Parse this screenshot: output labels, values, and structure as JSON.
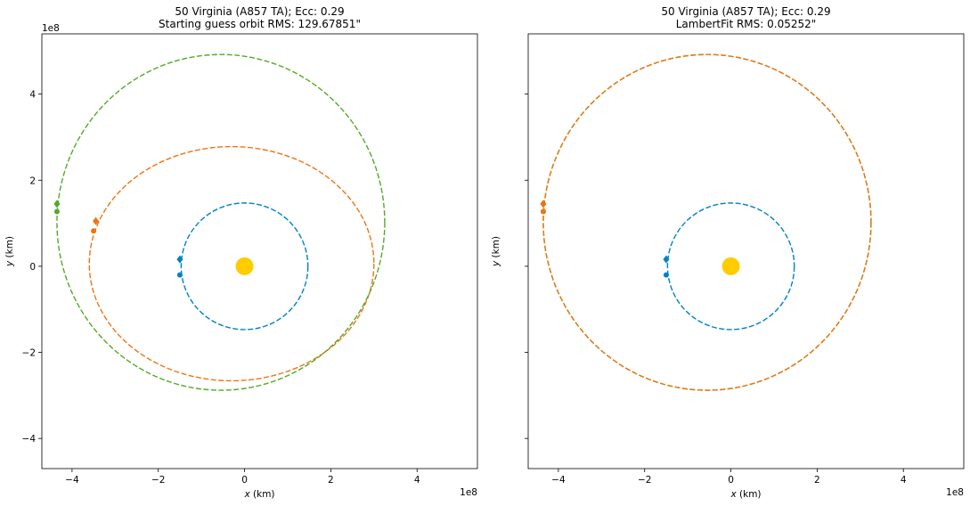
{
  "chart_data": [
    {
      "type": "line",
      "title": "50 Virginia (A857 TA); Ecc: 0.29",
      "subtitle": "Starting guess orbit RMS: 129.67851\"",
      "xlabel": "x (km)",
      "ylabel": "y (km)",
      "offset_x": "1e8",
      "offset_y": "1e8",
      "xlim": [
        -4.7,
        5.4
      ],
      "ylim": [
        -4.7,
        5.4
      ],
      "xticks": [
        -4,
        -2,
        0,
        2,
        4
      ],
      "yticks": [
        -4,
        -2,
        0,
        2,
        4
      ],
      "xtick_labels": [
        "−4",
        "−2",
        "0",
        "2",
        "4"
      ],
      "ytick_labels": [
        "−4",
        "−2",
        "0",
        "2",
        "4"
      ],
      "show_ytick_labels": true,
      "grid": false,
      "sun": {
        "x": 0,
        "y": 0,
        "color": "#ffcc00"
      },
      "series": [
        {
          "color": "#0081c9",
          "style": "dashed",
          "center": [
            0,
            0
          ],
          "a": 1.47,
          "b": 1.47,
          "diamond": [
            -1.5,
            0.16
          ],
          "dot": [
            -1.5,
            -0.2
          ]
        },
        {
          "color": "#ee7413",
          "style": "dashed",
          "center": [
            -0.3,
            0.06
          ],
          "a": 3.3,
          "b": 2.72,
          "diamond": [
            -3.45,
            1.05
          ],
          "dot": [
            -3.5,
            0.82
          ]
        },
        {
          "color": "#54a928",
          "style": "dashed",
          "center": [
            -0.55,
            1.02
          ],
          "a": 3.8,
          "b": 3.9,
          "diamond": [
            -4.35,
            1.45
          ],
          "dot": [
            -4.35,
            1.27
          ]
        }
      ]
    },
    {
      "type": "line",
      "title": "50 Virginia (A857 TA); Ecc: 0.29",
      "subtitle": "LambertFit RMS: 0.05252\"",
      "xlabel": "x (km)",
      "ylabel": "y (km)",
      "offset_x": "1e8",
      "offset_y": "",
      "xlim": [
        -4.7,
        5.4
      ],
      "ylim": [
        -4.7,
        5.4
      ],
      "xticks": [
        -4,
        -2,
        0,
        2,
        4
      ],
      "yticks": [
        -4,
        -2,
        0,
        2,
        4
      ],
      "xtick_labels": [
        "−4",
        "−2",
        "0",
        "2",
        "4"
      ],
      "ytick_labels": [],
      "show_ytick_labels": false,
      "grid": false,
      "sun": {
        "x": 0,
        "y": 0,
        "color": "#ffcc00"
      },
      "series": [
        {
          "color": "#0081c9",
          "style": "dashed",
          "center": [
            0,
            0
          ],
          "a": 1.47,
          "b": 1.47,
          "diamond": [
            -1.5,
            0.16
          ],
          "dot": [
            -1.5,
            -0.2
          ]
        },
        {
          "color": "#54a928",
          "style": "dashed",
          "center": [
            -0.55,
            1.02
          ],
          "a": 3.8,
          "b": 3.9,
          "diamond": [
            -4.35,
            1.45
          ],
          "dot": [
            -4.35,
            1.27
          ]
        },
        {
          "color": "#ee7413",
          "style": "dashed",
          "center": [
            -0.55,
            1.02
          ],
          "a": 3.8,
          "b": 3.9,
          "diamond": [
            -4.35,
            1.45
          ],
          "dot": [
            -4.35,
            1.27
          ]
        }
      ]
    }
  ]
}
